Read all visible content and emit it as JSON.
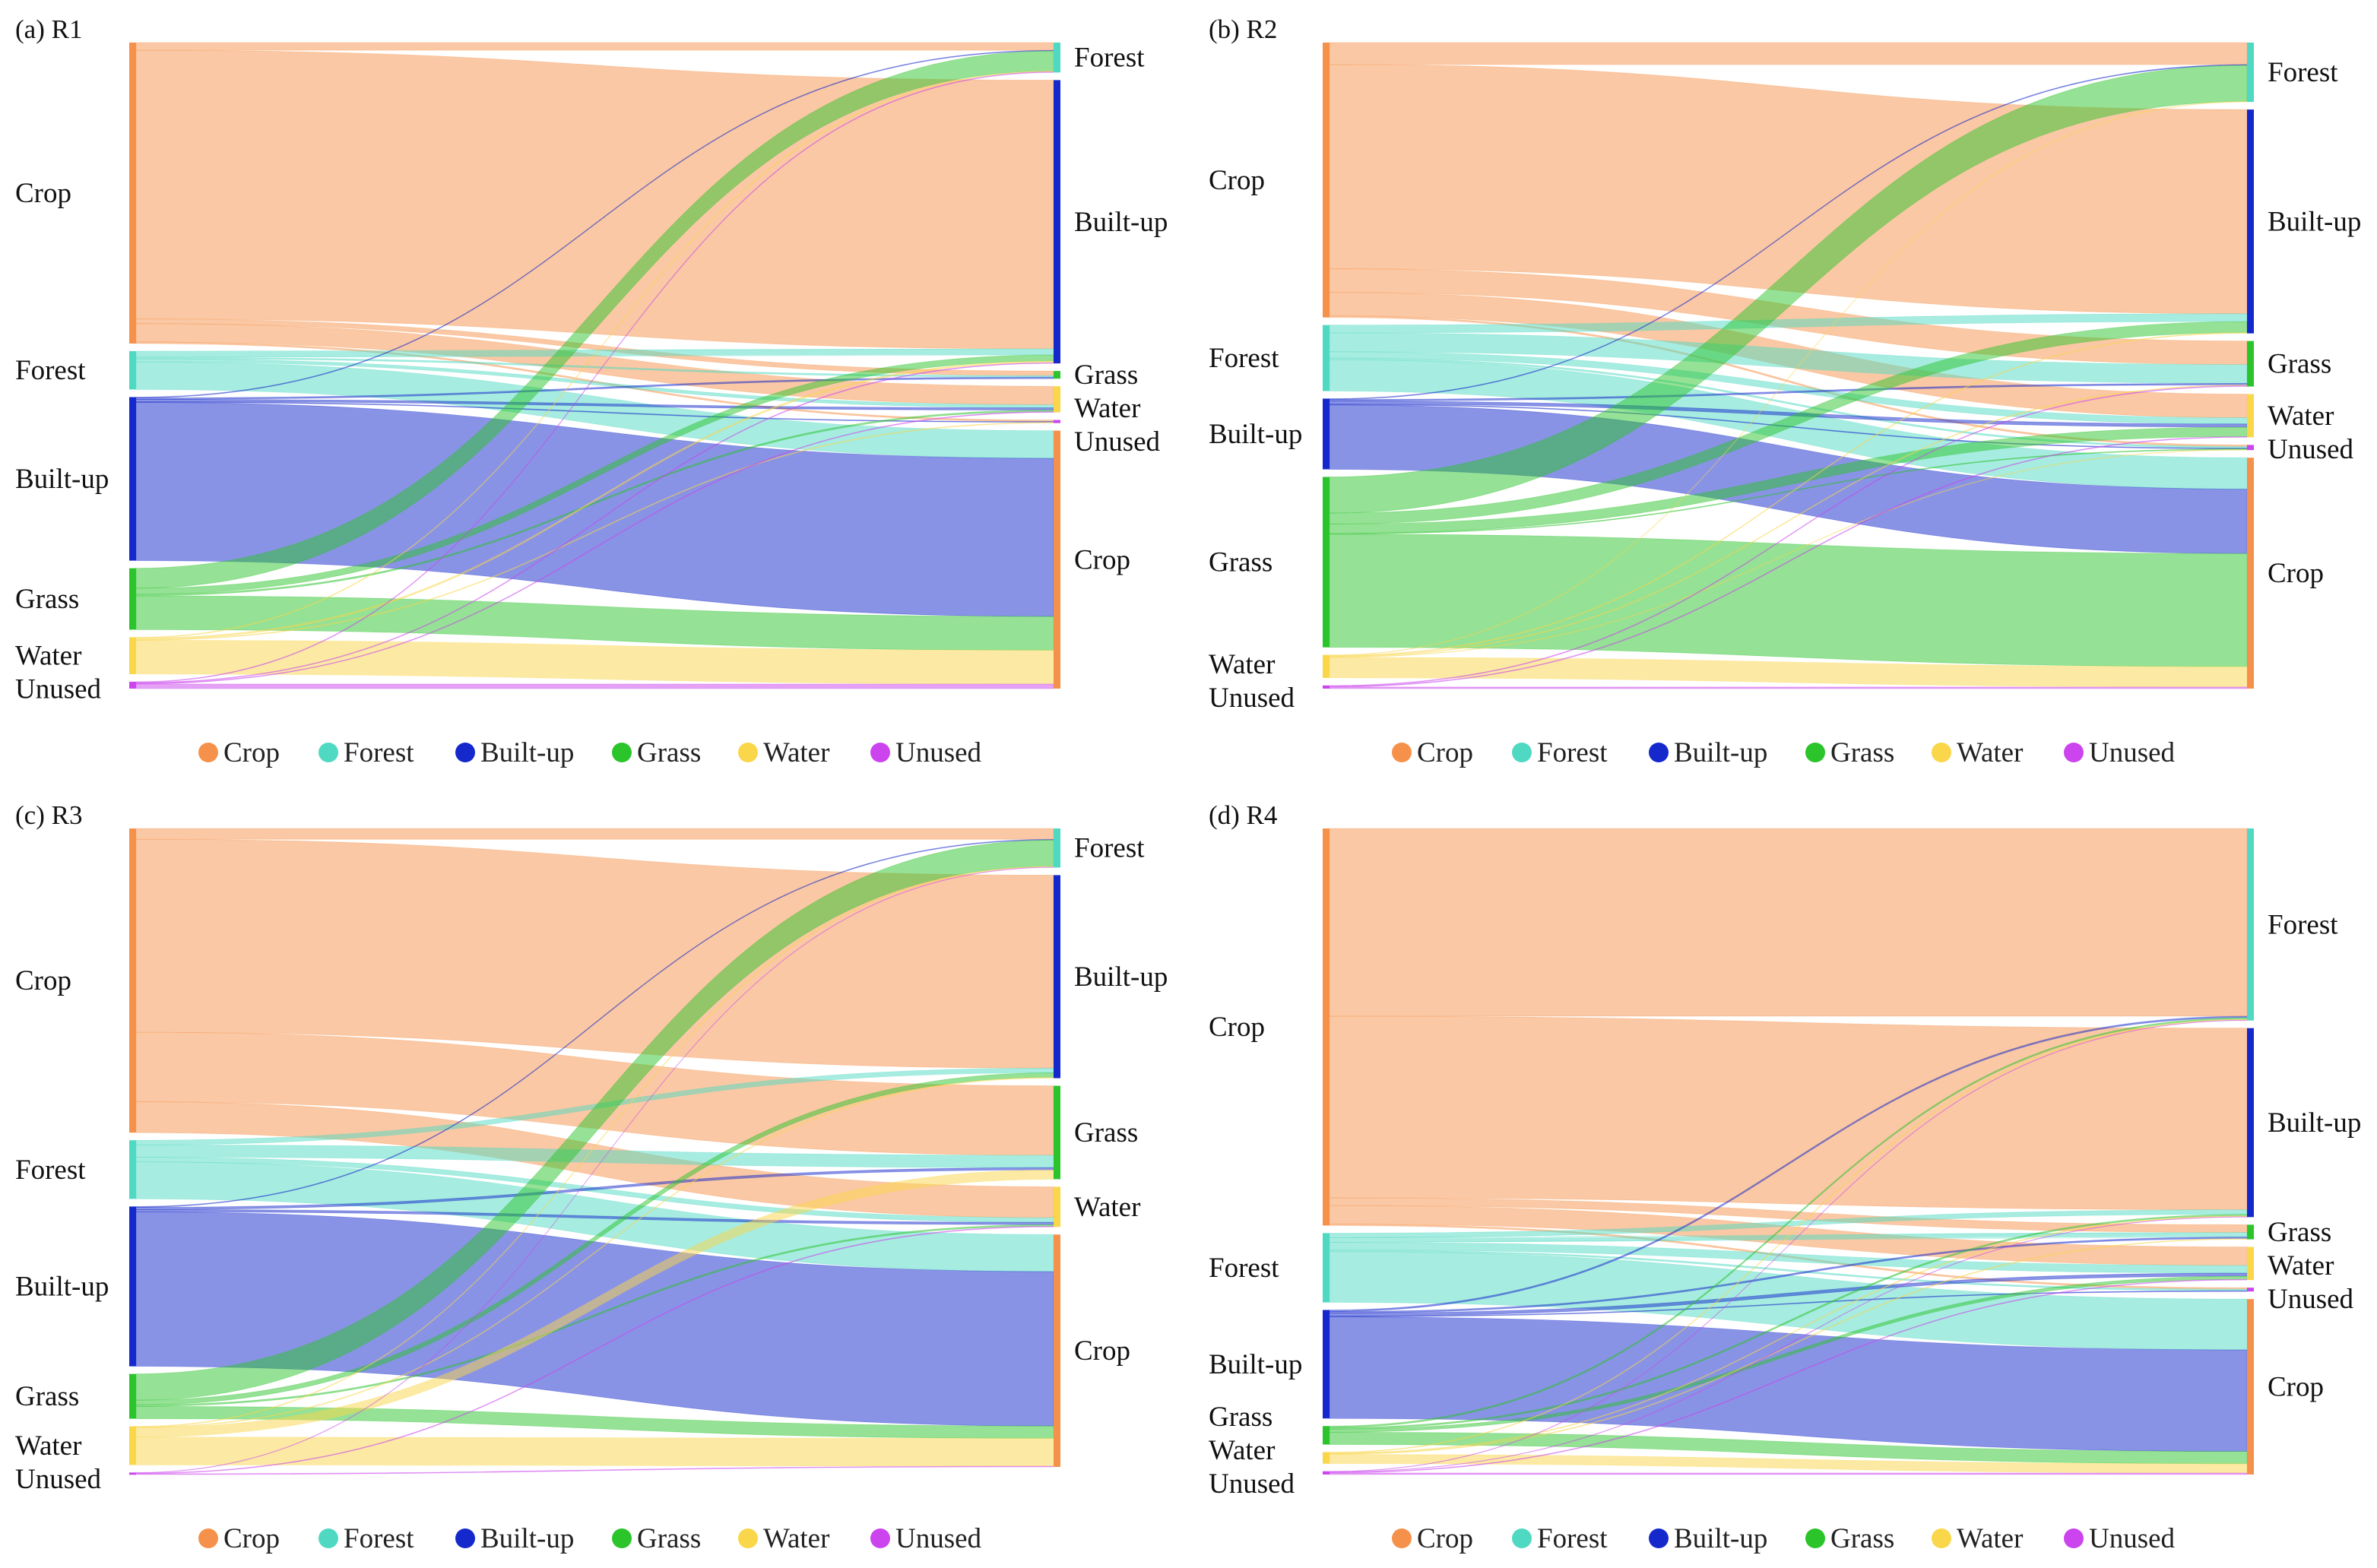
{
  "colors": {
    "Crop": "#f5914a",
    "Forest": "#4fd9c2",
    "Built-up": "#1428cc",
    "Grass": "#2bc42b",
    "Water": "#f9d64a",
    "Unused": "#cc44ee"
  },
  "legend": [
    "Crop",
    "Forest",
    "Built-up",
    "Grass",
    "Water",
    "Unused"
  ],
  "chart_data": [
    {
      "type": "sankey",
      "title": "(a) R1",
      "left_nodes": [
        "Crop",
        "Forest",
        "Built-up",
        "Grass",
        "Water",
        "Unused"
      ],
      "right_nodes": [
        "Forest",
        "Built-up",
        "Grass",
        "Water",
        "Unused",
        "Crop"
      ],
      "links": [
        [
          "Crop",
          "Forest",
          5
        ],
        [
          "Crop",
          "Built-up",
          175
        ],
        [
          "Crop",
          "Grass",
          3
        ],
        [
          "Crop",
          "Water",
          12
        ],
        [
          "Crop",
          "Unused",
          1
        ],
        [
          "Forest",
          "Built-up",
          4
        ],
        [
          "Forest",
          "Grass",
          1
        ],
        [
          "Forest",
          "Water",
          2
        ],
        [
          "Forest",
          "Crop",
          18
        ],
        [
          "Built-up",
          "Forest",
          0.5
        ],
        [
          "Built-up",
          "Grass",
          1
        ],
        [
          "Built-up",
          "Water",
          1.5
        ],
        [
          "Built-up",
          "Unused",
          0.5
        ],
        [
          "Built-up",
          "Crop",
          103
        ],
        [
          "Grass",
          "Forest",
          13
        ],
        [
          "Grass",
          "Built-up",
          4
        ],
        [
          "Grass",
          "Water",
          1
        ],
        [
          "Grass",
          "Crop",
          22
        ],
        [
          "Water",
          "Forest",
          0.5
        ],
        [
          "Water",
          "Built-up",
          1
        ],
        [
          "Water",
          "Unused",
          0.5
        ],
        [
          "Water",
          "Crop",
          22
        ],
        [
          "Unused",
          "Forest",
          0.5
        ],
        [
          "Unused",
          "Built-up",
          0.5
        ],
        [
          "Unused",
          "Water",
          0.5
        ],
        [
          "Unused",
          "Crop",
          3
        ]
      ]
    },
    {
      "type": "sankey",
      "title": "(b) R2",
      "left_nodes": [
        "Crop",
        "Forest",
        "Built-up",
        "Grass",
        "Water",
        "Unused"
      ],
      "right_nodes": [
        "Forest",
        "Built-up",
        "Grass",
        "Water",
        "Unused",
        "Crop"
      ],
      "links": [
        [
          "Crop",
          "Forest",
          14
        ],
        [
          "Crop",
          "Built-up",
          130
        ],
        [
          "Crop",
          "Grass",
          15
        ],
        [
          "Crop",
          "Water",
          15
        ],
        [
          "Crop",
          "Unused",
          1
        ],
        [
          "Forest",
          "Built-up",
          5
        ],
        [
          "Forest",
          "Grass",
          12
        ],
        [
          "Forest",
          "Water",
          4
        ],
        [
          "Forest",
          "Unused",
          1
        ],
        [
          "Forest",
          "Crop",
          20
        ],
        [
          "Built-up",
          "Forest",
          0.5
        ],
        [
          "Built-up",
          "Grass",
          1
        ],
        [
          "Built-up",
          "Water",
          2
        ],
        [
          "Built-up",
          "Unused",
          0.5
        ],
        [
          "Built-up",
          "Crop",
          41
        ],
        [
          "Grass",
          "Forest",
          23
        ],
        [
          "Grass",
          "Built-up",
          7
        ],
        [
          "Grass",
          "Water",
          6
        ],
        [
          "Grass",
          "Unused",
          0.5
        ],
        [
          "Grass",
          "Crop",
          72
        ],
        [
          "Water",
          "Forest",
          0.3
        ],
        [
          "Water",
          "Built-up",
          0.5
        ],
        [
          "Water",
          "Grass",
          0.5
        ],
        [
          "Water",
          "Unused",
          0.3
        ],
        [
          "Water",
          "Crop",
          13
        ],
        [
          "Unused",
          "Grass",
          0.5
        ],
        [
          "Unused",
          "Water",
          0.5
        ],
        [
          "Unused",
          "Crop",
          1
        ]
      ]
    },
    {
      "type": "sankey",
      "title": "(c) R3",
      "left_nodes": [
        "Crop",
        "Forest",
        "Built-up",
        "Grass",
        "Water",
        "Unused"
      ],
      "right_nodes": [
        "Forest",
        "Built-up",
        "Grass",
        "Water",
        "Crop"
      ],
      "links": [
        [
          "Crop",
          "Forest",
          7
        ],
        [
          "Crop",
          "Built-up",
          125
        ],
        [
          "Crop",
          "Grass",
          45
        ],
        [
          "Crop",
          "Water",
          20
        ],
        [
          "Forest",
          "Built-up",
          3
        ],
        [
          "Forest",
          "Grass",
          8
        ],
        [
          "Forest",
          "Water",
          3
        ],
        [
          "Forest",
          "Crop",
          24
        ],
        [
          "Built-up",
          "Forest",
          0.5
        ],
        [
          "Built-up",
          "Grass",
          1.5
        ],
        [
          "Built-up",
          "Water",
          1.5
        ],
        [
          "Built-up",
          "Crop",
          100
        ],
        [
          "Grass",
          "Forest",
          17
        ],
        [
          "Grass",
          "Built-up",
          3
        ],
        [
          "Grass",
          "Water",
          1
        ],
        [
          "Grass",
          "Crop",
          8
        ],
        [
          "Water",
          "Forest",
          0.5
        ],
        [
          "Water",
          "Built-up",
          0.5
        ],
        [
          "Water",
          "Grass",
          6
        ],
        [
          "Water",
          "Crop",
          18
        ],
        [
          "Unused",
          "Forest",
          0.3
        ],
        [
          "Unused",
          "Water",
          0.5
        ],
        [
          "Unused",
          "Crop",
          0.5
        ]
      ]
    },
    {
      "type": "sankey",
      "title": "(d) R4",
      "left_nodes": [
        "Crop",
        "Forest",
        "Built-up",
        "Grass",
        "Water",
        "Unused"
      ],
      "right_nodes": [
        "Forest",
        "Built-up",
        "Grass",
        "Water",
        "Unused",
        "Crop"
      ],
      "links": [
        [
          "Crop",
          "Forest",
          122
        ],
        [
          "Crop",
          "Built-up",
          118
        ],
        [
          "Crop",
          "Grass",
          5
        ],
        [
          "Crop",
          "Water",
          12
        ],
        [
          "Crop",
          "Unused",
          1
        ],
        [
          "Forest",
          "Built-up",
          3
        ],
        [
          "Forest",
          "Grass",
          3
        ],
        [
          "Forest",
          "Water",
          5
        ],
        [
          "Forest",
          "Unused",
          1
        ],
        [
          "Forest",
          "Crop",
          33
        ],
        [
          "Built-up",
          "Forest",
          1
        ],
        [
          "Built-up",
          "Grass",
          1
        ],
        [
          "Built-up",
          "Water",
          2
        ],
        [
          "Built-up",
          "Unused",
          0.5
        ],
        [
          "Built-up",
          "Crop",
          66
        ],
        [
          "Grass",
          "Forest",
          1
        ],
        [
          "Grass",
          "Built-up",
          1
        ],
        [
          "Grass",
          "Water",
          2
        ],
        [
          "Grass",
          "Crop",
          8
        ],
        [
          "Water",
          "Forest",
          0.5
        ],
        [
          "Water",
          "Built-up",
          0.5
        ],
        [
          "Water",
          "Grass",
          0.5
        ],
        [
          "Water",
          "Crop",
          6
        ],
        [
          "Unused",
          "Forest",
          0.3
        ],
        [
          "Unused",
          "Built-up",
          0.3
        ],
        [
          "Unused",
          "Water",
          0.5
        ],
        [
          "Unused",
          "Crop",
          1
        ]
      ]
    }
  ]
}
